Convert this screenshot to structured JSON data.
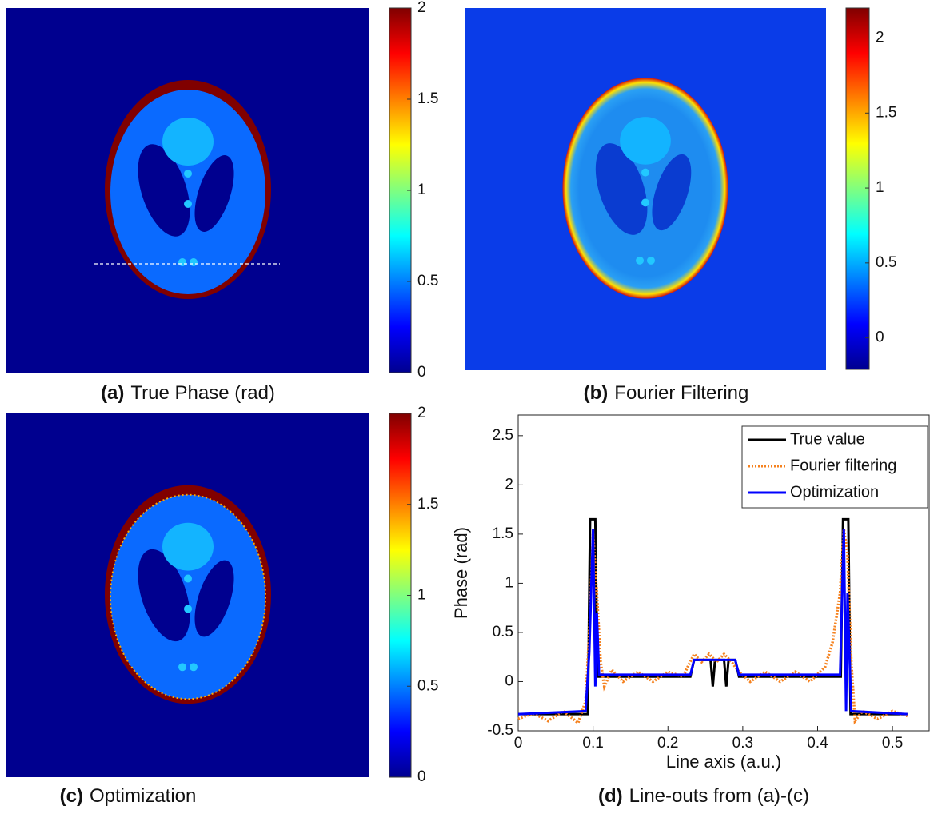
{
  "chart_data": [
    {
      "type": "image",
      "label": "(a)",
      "caption": "True Phase (rad)",
      "colormap": "jet",
      "ylim": [
        0,
        2
      ],
      "yticks": [
        0,
        0.5,
        1,
        1.5,
        2
      ]
    },
    {
      "type": "image",
      "label": "(b)",
      "caption": "Fourier Filtering",
      "colormap": "jet",
      "ylim": [
        -0.21,
        2.2
      ],
      "yticks": [
        0,
        0.5,
        1,
        1.5,
        2
      ]
    },
    {
      "type": "image",
      "label": "(c)",
      "caption": "Optimization",
      "colormap": "jet",
      "ylim": [
        0,
        2
      ],
      "yticks": [
        0,
        0.5,
        1,
        1.5,
        2
      ]
    },
    {
      "type": "line",
      "label": "(d)",
      "caption": "Line-outs from (a)-(c)",
      "x_label": "Line axis (a.u.)",
      "y_label": "Phase (rad)",
      "xlim": [
        0,
        0.549
      ],
      "xticks": [
        0,
        0.1,
        0.2,
        0.3,
        0.4,
        0.5
      ],
      "ylim": [
        -0.5,
        2.71
      ],
      "yticks": [
        -0.5,
        0,
        0.5,
        1,
        1.5,
        2,
        2.5
      ],
      "legend": "northeast",
      "series": [
        {
          "name": "True value",
          "color": "#000000",
          "style": "solid",
          "x": [
            0,
            0.093,
            0.096,
            0.103,
            0.106,
            0.23,
            0.235,
            0.257,
            0.26,
            0.263,
            0.275,
            0.278,
            0.281,
            0.29,
            0.295,
            0.431,
            0.434,
            0.441,
            0.444,
            0.52
          ],
          "values": [
            -0.33,
            -0.33,
            1.65,
            1.65,
            0.05,
            0.05,
            0.22,
            0.22,
            -0.05,
            0.22,
            0.22,
            -0.05,
            0.22,
            0.22,
            0.05,
            0.05,
            1.65,
            1.65,
            -0.33,
            -0.33
          ]
        },
        {
          "name": "Fourier filtering",
          "color": "#f5821f",
          "style": "dotted",
          "x": [
            0,
            0.02,
            0.04,
            0.06,
            0.08,
            0.09,
            0.095,
            0.1,
            0.105,
            0.11,
            0.115,
            0.125,
            0.14,
            0.16,
            0.18,
            0.2,
            0.22,
            0.235,
            0.245,
            0.255,
            0.265,
            0.275,
            0.285,
            0.295,
            0.31,
            0.33,
            0.35,
            0.37,
            0.39,
            0.41,
            0.42,
            0.43,
            0.435,
            0.44,
            0.445,
            0.45,
            0.46,
            0.48,
            0.5,
            0.52
          ],
          "values": [
            -0.38,
            -0.32,
            -0.4,
            -0.3,
            -0.42,
            -0.2,
            0.5,
            1.5,
            0.9,
            0.2,
            -0.05,
            0.12,
            0,
            0.1,
            0,
            0.1,
            0.05,
            0.28,
            0.2,
            0.28,
            0.2,
            0.28,
            0.2,
            0.1,
            0,
            0.1,
            0,
            0.1,
            0,
            0.15,
            0.4,
            0.9,
            1.55,
            1.3,
            0.2,
            -0.4,
            -0.3,
            -0.38,
            -0.3,
            -0.35
          ]
        },
        {
          "name": "Optimization",
          "color": "#0000ff",
          "style": "solid",
          "x": [
            0,
            0.09,
            0.095,
            0.1,
            0.103,
            0.105,
            0.108,
            0.23,
            0.235,
            0.29,
            0.295,
            0.43,
            0.435,
            0.438,
            0.44,
            0.445,
            0.52
          ],
          "values": [
            -0.33,
            -0.3,
            0.3,
            1.55,
            -0.05,
            0.7,
            0.07,
            0.07,
            0.22,
            0.22,
            0.07,
            0.07,
            1.55,
            -0.3,
            0.9,
            -0.3,
            -0.33
          ]
        }
      ]
    }
  ]
}
